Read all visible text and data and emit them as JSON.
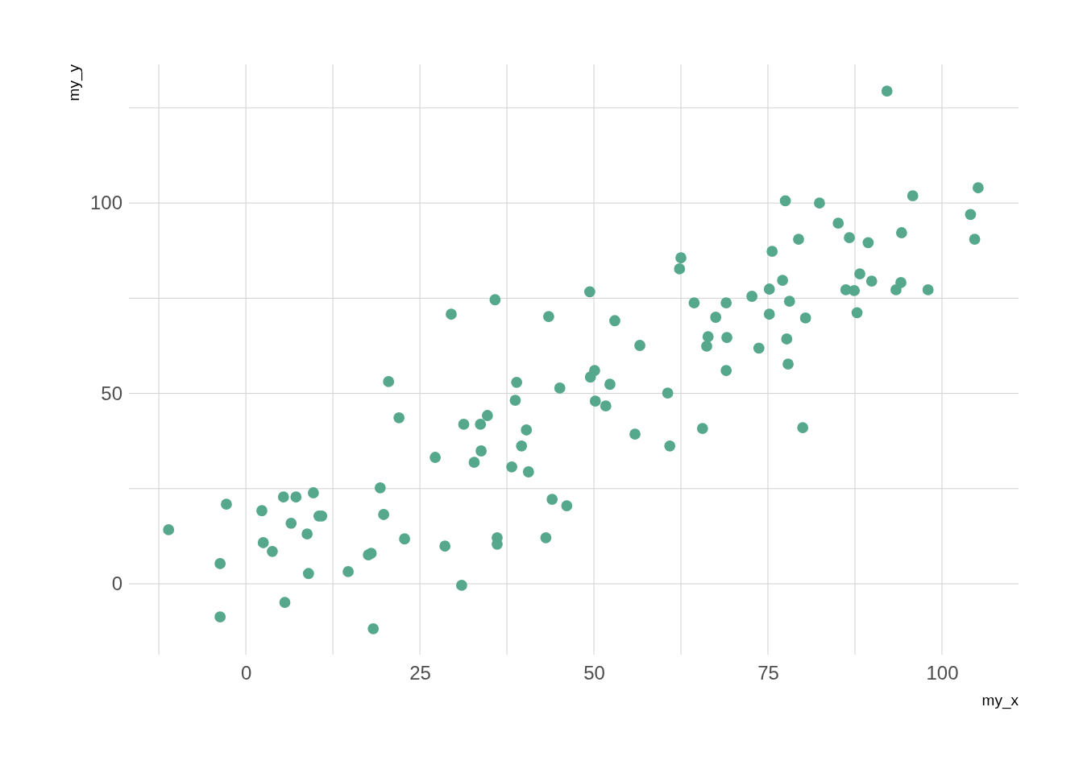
{
  "chart_data": {
    "type": "scatter",
    "xlabel": "my_x",
    "ylabel": "my_y",
    "xlim": [
      -16.8,
      111
    ],
    "ylim": [
      -18.6,
      136.4
    ],
    "xticks": [
      {
        "value": -12.5,
        "label": null
      },
      0,
      {
        "value": 12.5,
        "label": null
      },
      25,
      {
        "value": 37.5,
        "label": null
      },
      50,
      {
        "value": 62.5,
        "label": null
      },
      75,
      {
        "value": 87.5,
        "label": null
      },
      100
    ],
    "yticks": [
      0,
      {
        "value": 25,
        "label": null
      },
      50,
      {
        "value": 75,
        "label": null
      },
      100,
      {
        "value": 125,
        "label": null
      }
    ],
    "grid": true,
    "marker": "circle",
    "series": [
      {
        "color": "#56a88c",
        "x": [
          -11.1,
          -3.7,
          -2.8,
          -3.7,
          2.3,
          2.5,
          3.8,
          5.4,
          7.2,
          5.6,
          6.5,
          8.8,
          9.7,
          10.5,
          10.9,
          9.0,
          14.7,
          17.6,
          18.0,
          18.3,
          19.3,
          19.8,
          20.5,
          22.0,
          22.8,
          27.2,
          28.6,
          29.5,
          31.0,
          31.3,
          32.8,
          33.7,
          33.8,
          34.7,
          35.8,
          36.1,
          36.1,
          38.2,
          38.7,
          38.9,
          39.6,
          40.3,
          40.6,
          43.1,
          43.5,
          44.0,
          45.1,
          46.1,
          49.4,
          49.5,
          50.1,
          50.2,
          51.7,
          52.3,
          53.0,
          55.9,
          56.6,
          60.6,
          60.9,
          62.3,
          62.5,
          64.4,
          65.6,
          66.2,
          66.4,
          67.5,
          69.0,
          69.0,
          69.1,
          72.7,
          73.7,
          75.2,
          75.2,
          75.6,
          77.1,
          77.5,
          77.7,
          77.9,
          78.1,
          79.4,
          80.0,
          80.4,
          82.4,
          85.1,
          86.2,
          86.7,
          87.4,
          87.8,
          88.2,
          89.4,
          89.9,
          92.1,
          93.4,
          94.1,
          94.2,
          95.8,
          98.0,
          104.1,
          104.7,
          105.2
        ],
        "values": [
          14.2,
          5.3,
          20.9,
          -8.7,
          19.2,
          10.8,
          8.5,
          22.8,
          22.8,
          -4.9,
          15.9,
          13.1,
          23.9,
          17.8,
          17.8,
          2.7,
          3.2,
          7.6,
          8.0,
          -11.8,
          25.2,
          18.2,
          53.1,
          43.6,
          11.8,
          33.2,
          9.9,
          70.8,
          -0.4,
          41.9,
          31.9,
          41.9,
          34.9,
          44.2,
          74.6,
          12.1,
          10.4,
          30.7,
          48.2,
          52.9,
          36.2,
          40.4,
          29.4,
          12.1,
          70.2,
          22.2,
          51.4,
          20.5,
          76.7,
          54.3,
          56.0,
          48.0,
          46.7,
          52.4,
          69.1,
          39.3,
          62.6,
          50.1,
          36.2,
          82.7,
          85.6,
          73.8,
          40.8,
          62.4,
          64.9,
          70.0,
          73.8,
          56.0,
          64.7,
          75.5,
          61.9,
          77.4,
          70.8,
          87.3,
          79.7,
          100.6,
          64.3,
          57.7,
          74.2,
          90.5,
          41.0,
          69.8,
          100.0,
          94.7,
          77.2,
          90.9,
          77.0,
          71.2,
          81.4,
          89.6,
          79.5,
          129.4,
          77.2,
          79.1,
          92.2,
          101.9,
          77.2,
          97.0,
          90.5,
          104.0
        ]
      }
    ]
  }
}
